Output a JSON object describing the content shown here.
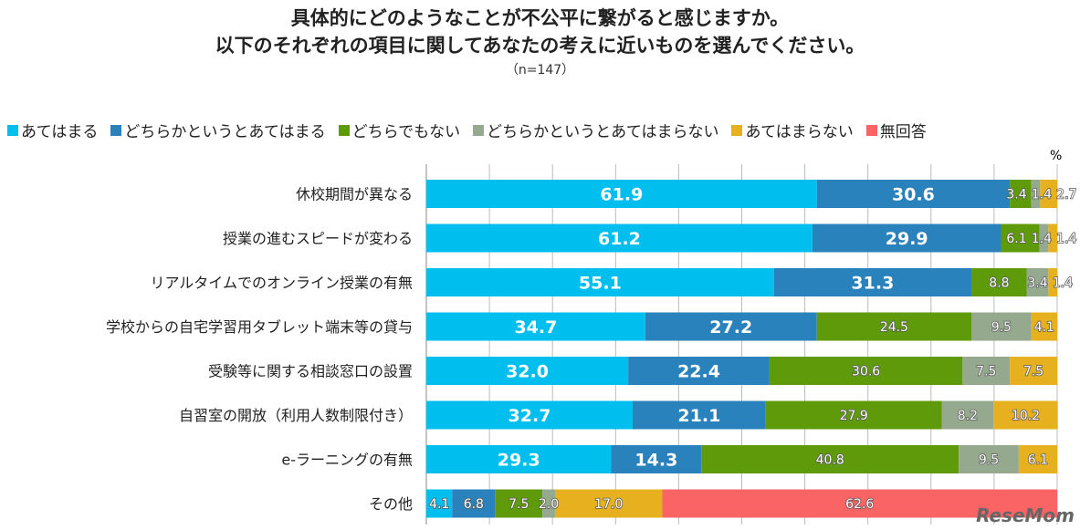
{
  "title_lines": [
    "具体的にどのようなことが不公平に繋がると感じますか。",
    "以下のそれぞれの項目に関してあなたの考えに近いものを選んでください。"
  ],
  "sample_size": "（n=147）",
  "unit": "%",
  "logo": "ReseMom",
  "chart_data": {
    "type": "bar",
    "orientation": "horizontal",
    "stacked": true,
    "xlim": [
      0,
      100
    ],
    "grid": true,
    "legend_position": "top",
    "categories": [
      "休校期間が異なる",
      "授業の進むスピードが変わる",
      "リアルタイムでのオンライン授業の有無",
      "学校からの自宅学習用タブレット端末等の貸与",
      "受験等に関する相談窓口の設置",
      "自習室の開放（利用人数制限付き）",
      "e-ラーニングの有無",
      "その他"
    ],
    "series": [
      {
        "name": "あてはまる",
        "color": "#00bfee",
        "values": [
          61.9,
          61.2,
          55.1,
          34.7,
          32.0,
          32.7,
          29.3,
          4.1
        ]
      },
      {
        "name": "どちらかというとあてはまる",
        "color": "#2a82bd",
        "values": [
          30.6,
          29.9,
          31.3,
          27.2,
          22.4,
          21.1,
          14.3,
          6.8
        ]
      },
      {
        "name": "どちらでもない",
        "color": "#5f9a0b",
        "values": [
          3.4,
          6.1,
          8.8,
          24.5,
          30.6,
          27.9,
          40.8,
          7.5
        ]
      },
      {
        "name": "どちらかというとあてはまらない",
        "color": "#95a98f",
        "values": [
          1.4,
          1.4,
          3.4,
          9.5,
          7.5,
          8.2,
          9.5,
          2.0
        ]
      },
      {
        "name": "あてはまらない",
        "color": "#e6b01f",
        "values": [
          2.7,
          1.4,
          1.4,
          4.1,
          7.5,
          10.2,
          6.1,
          17.0
        ]
      },
      {
        "name": "無回答",
        "color": "#fa6464",
        "values": [
          0,
          0,
          0,
          0,
          0,
          0,
          0,
          62.6
        ]
      }
    ]
  }
}
